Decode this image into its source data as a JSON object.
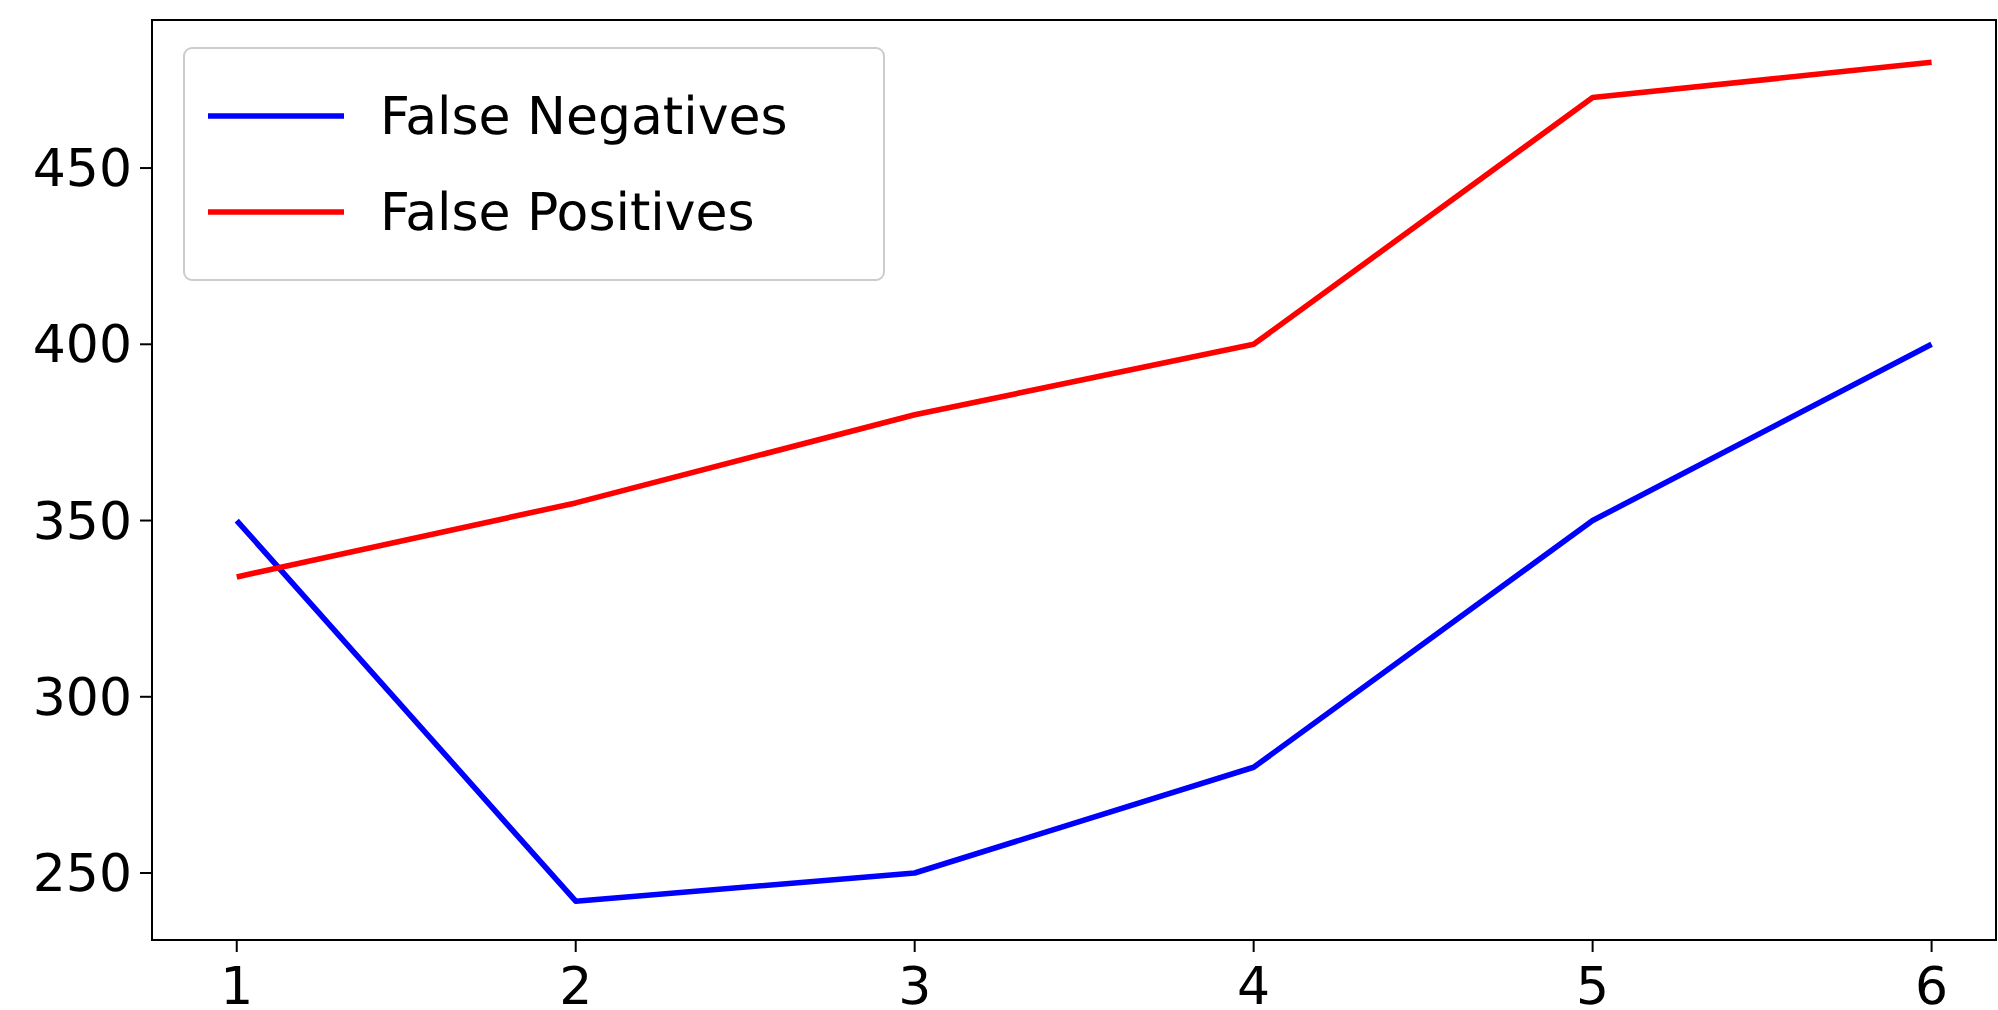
{
  "chart_data": {
    "type": "line",
    "x": [
      1,
      2,
      3,
      4,
      5,
      6
    ],
    "series": [
      {
        "name": "False Negatives",
        "color": "#0000ff",
        "values": [
          350,
          242,
          250,
          280,
          350,
          400
        ]
      },
      {
        "name": "False Positives",
        "color": "#ff0000",
        "values": [
          334,
          355,
          380,
          400,
          470,
          480
        ]
      }
    ],
    "xlim": [
      0.75,
      6.19
    ],
    "xticks": [
      1,
      2,
      3,
      4,
      5,
      6
    ],
    "ylim": [
      231,
      492
    ],
    "yticks": [
      250,
      300,
      350,
      400,
      450
    ],
    "grid": false,
    "legend": "top left",
    "marker": "none",
    "line_style": "solid"
  }
}
